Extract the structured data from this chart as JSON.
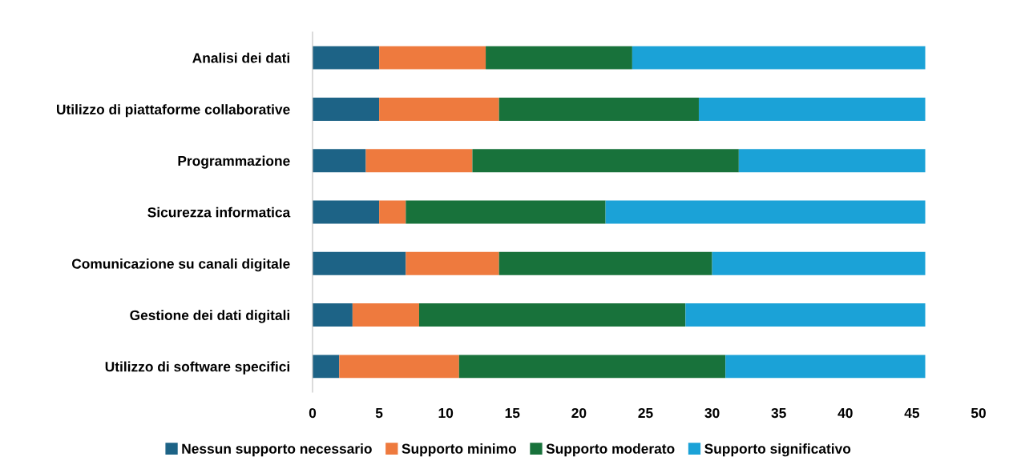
{
  "chart_data": {
    "type": "bar",
    "orientation": "horizontal",
    "stacked": true,
    "categories": [
      "Analisi dei dati",
      "Utilizzo di piattaforme collaborative",
      "Programmazione",
      "Sicurezza informatica",
      "Comunicazione su canali digitale",
      "Gestione dei dati digitali",
      "Utilizzo di software specifici"
    ],
    "series": [
      {
        "name": "Nessun supporto necessario",
        "color": "#1d6386",
        "values": [
          5,
          5,
          4,
          5,
          7,
          3,
          2
        ]
      },
      {
        "name": "Supporto minimo",
        "color": "#ee7a3e",
        "values": [
          8,
          9,
          8,
          2,
          7,
          5,
          9
        ]
      },
      {
        "name": "Supporto moderato",
        "color": "#18723b",
        "values": [
          11,
          15,
          20,
          15,
          16,
          20,
          20
        ]
      },
      {
        "name": "Supporto significativo",
        "color": "#1ba2d7",
        "values": [
          22,
          17,
          14,
          24,
          16,
          18,
          15
        ]
      }
    ],
    "xlim": [
      0,
      50
    ],
    "xticks": [
      0,
      5,
      10,
      15,
      20,
      25,
      30,
      35,
      40,
      45,
      50
    ],
    "grid": false,
    "legend": "bottom"
  }
}
